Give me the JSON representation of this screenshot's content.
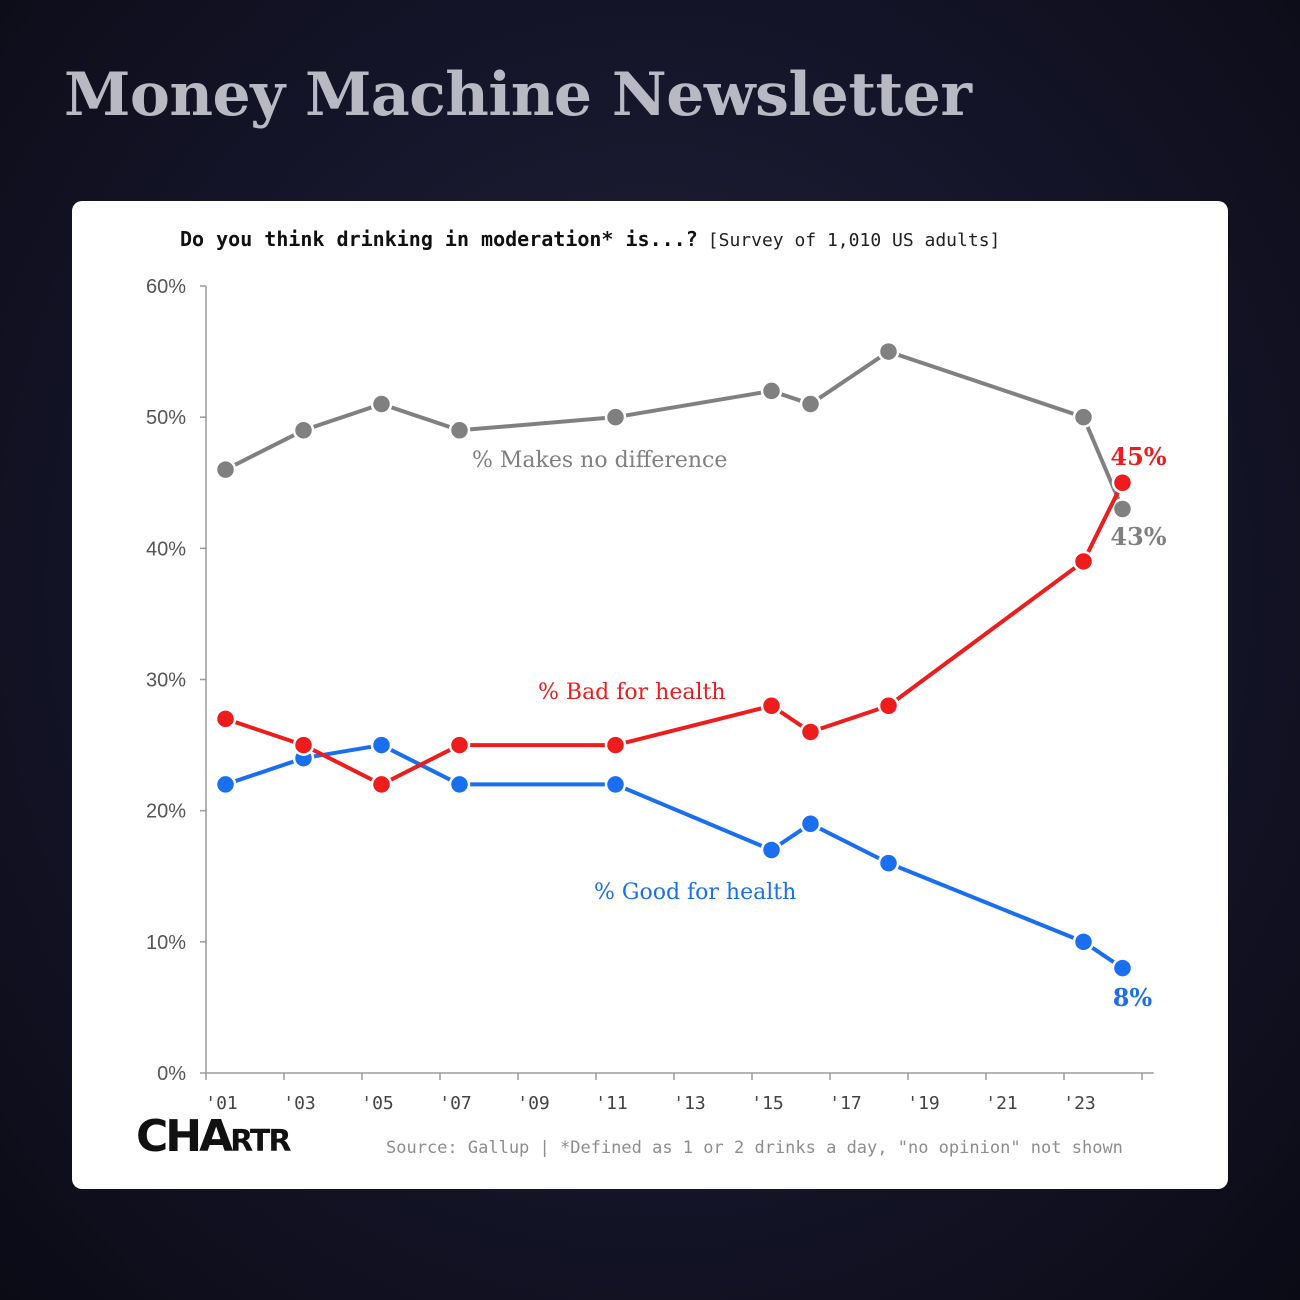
{
  "page": {
    "newsletter_title": "Money Machine Newsletter",
    "background_color": "#15152a"
  },
  "chart_data": {
    "type": "line",
    "title": "Do you think drinking in moderation* is...?",
    "subtitle": "[Survey of 1,010 US adults]",
    "xlabel": "",
    "ylabel": "",
    "y_ticks": [
      "0%",
      "10%",
      "20%",
      "30%",
      "40%",
      "50%",
      "60%"
    ],
    "ylim": [
      0,
      60
    ],
    "x_ticks": [
      "'01",
      "'03",
      "'05",
      "'07",
      "'09",
      "'11",
      "'13",
      "'15",
      "'17",
      "'19",
      "'21",
      "'23"
    ],
    "xlim": [
      2001,
      2025
    ],
    "grid": false,
    "legend": "inline labels",
    "series": [
      {
        "name": "% Makes no difference",
        "color": "#808080",
        "x": [
          2001,
          2003,
          2005,
          2007,
          2011,
          2015,
          2016,
          2018,
          2023,
          2024
        ],
        "values": [
          46,
          49,
          51,
          49,
          50,
          52,
          51,
          55,
          50,
          43
        ],
        "end_label": "43%"
      },
      {
        "name": "% Bad for health",
        "color": "#ee1c1c",
        "x": [
          2001,
          2003,
          2005,
          2007,
          2011,
          2015,
          2016,
          2018,
          2023,
          2024
        ],
        "values": [
          27,
          25,
          22,
          25,
          25,
          28,
          26,
          28,
          39,
          45
        ],
        "end_label": "45%"
      },
      {
        "name": "% Good for health",
        "color": "#1a6ff0",
        "x": [
          2001,
          2003,
          2005,
          2007,
          2011,
          2015,
          2016,
          2018,
          2023,
          2024
        ],
        "values": [
          22,
          24,
          25,
          22,
          22,
          17,
          19,
          16,
          10,
          8
        ],
        "end_label": "8%"
      }
    ],
    "source": "Source: Gallup | *Defined as 1 or 2 drinks a day, \"no opinion\" not shown",
    "brand": {
      "big": "CHA",
      "small": "RTR"
    }
  }
}
